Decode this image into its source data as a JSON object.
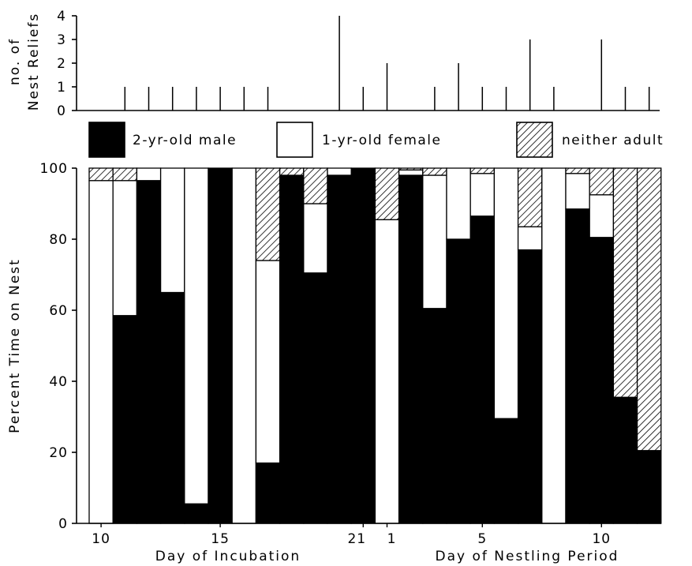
{
  "chart_data": [
    {
      "type": "bar",
      "ylabel_lines": [
        "no. of",
        "Nest Reliefs"
      ],
      "ylim": [
        0,
        4
      ],
      "yticks": [
        0,
        1,
        2,
        3,
        4
      ],
      "x": [
        10,
        11,
        12,
        13,
        14,
        15,
        16,
        17,
        18,
        19,
        20,
        21,
        1,
        2,
        3,
        4,
        5,
        6,
        7,
        8,
        9,
        10,
        11,
        12
      ],
      "values": [
        0,
        1,
        1,
        1,
        1,
        1,
        1,
        1,
        0,
        0,
        4,
        1,
        2,
        0,
        1,
        2,
        1,
        1,
        3,
        1,
        0,
        3,
        1,
        1
      ]
    },
    {
      "type": "bar",
      "stacked": true,
      "ylabel": "Percent Time on Nest",
      "ylim": [
        0,
        100
      ],
      "yticks": [
        0,
        20,
        40,
        60,
        80,
        100
      ],
      "x": [
        10,
        11,
        12,
        13,
        14,
        15,
        16,
        17,
        18,
        19,
        20,
        21,
        1,
        2,
        3,
        4,
        5,
        6,
        7,
        8,
        9,
        10,
        11,
        12
      ],
      "xtick_labels": [
        "10",
        "15",
        "21",
        "1",
        "5",
        "10"
      ],
      "xlabels": [
        "Day of Incubation",
        "Day of Nestling Period"
      ],
      "series": [
        {
          "name": "2-yr-old male",
          "color": "#000000",
          "pattern": "solid",
          "values": [
            0,
            58.5,
            96.5,
            65,
            5.5,
            100,
            0,
            17,
            98,
            70.5,
            98,
            100,
            0,
            98,
            60.5,
            80,
            86.5,
            29.5,
            77,
            0,
            88.5,
            80.5,
            35.5,
            20.5
          ]
        },
        {
          "name": "1-yr-old female",
          "color": "#ffffff",
          "pattern": "white",
          "values": [
            96.5,
            38,
            3.5,
            35,
            94.5,
            0,
            100,
            57,
            0,
            19.5,
            2,
            0,
            85.5,
            1.5,
            37.5,
            20,
            12,
            70.5,
            6.5,
            100,
            10,
            12,
            0,
            0
          ]
        },
        {
          "name": "neither adult",
          "color": "#ffffff",
          "pattern": "hatched",
          "values": [
            3.5,
            3.5,
            0,
            0,
            0,
            0,
            0,
            26,
            2,
            10,
            0,
            0,
            14.5,
            0.5,
            2,
            0,
            1.5,
            0,
            16.5,
            0,
            1.5,
            7.5,
            64.5,
            79.5
          ]
        }
      ],
      "legend": {
        "placement": "top",
        "entries": [
          "2-yr-old male",
          "1-yr-old female",
          "neither adult"
        ]
      }
    }
  ]
}
